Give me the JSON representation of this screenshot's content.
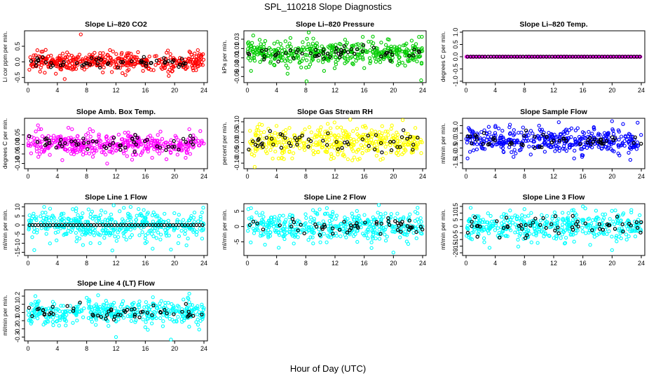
{
  "title": "SPL_110218  Slope Diagnostics",
  "xlabel": "Hour of Day (UTC)",
  "chart_data": [
    {
      "type": "scatter",
      "title": "Slope Li–820 CO2",
      "ylabel": "Li cor ppm per min.",
      "xlim": [
        0,
        24
      ],
      "ylim": [
        -0.62,
        0.95
      ],
      "xticks": [
        0,
        4,
        8,
        12,
        16,
        20,
        24
      ],
      "yticks": [
        -0.5,
        0.0,
        0.5
      ],
      "ytick_labels": [
        "-0.5",
        "0.0",
        "0.5"
      ],
      "color": "#ff0000",
      "secondary_color": "#000000",
      "spread": 0.14,
      "outliers": [
        [
          3.8,
          -0.38
        ],
        [
          5.0,
          -0.55
        ],
        [
          7.2,
          0.88
        ],
        [
          10.2,
          -0.34
        ],
        [
          13.3,
          -0.42
        ],
        [
          19.2,
          -0.45
        ],
        [
          2.0,
          0.33
        ],
        [
          15.0,
          0.31
        ]
      ]
    },
    {
      "type": "scatter",
      "title": "Slope Li–820 Pressure",
      "ylabel": "kPa per min.",
      "xlim": [
        0,
        24
      ],
      "ylim": [
        -0.06,
        0.045
      ],
      "xticks": [
        0,
        4,
        8,
        12,
        16,
        20,
        24
      ],
      "yticks": [
        -0.05,
        -0.03,
        -0.01,
        0.01,
        0.03
      ],
      "ytick_labels": [
        "-0.05",
        "-0.03",
        "-0.01",
        "0.01",
        "0.03"
      ],
      "color": "#00cc00",
      "secondary_color": "#000000",
      "spread": 0.012,
      "outliers": [
        [
          0.5,
          -0.038
        ],
        [
          0.8,
          0.038
        ],
        [
          5.5,
          -0.044
        ],
        [
          8.1,
          -0.062
        ],
        [
          10.5,
          -0.038
        ],
        [
          15.8,
          0.035
        ],
        [
          16.0,
          -0.032
        ],
        [
          23.8,
          -0.058
        ],
        [
          23.5,
          0.035
        ]
      ]
    },
    {
      "type": "scatter",
      "title": "Slope Li–820 Temp.",
      "ylabel": "degrees C per min.",
      "xlim": [
        0,
        24
      ],
      "ylim": [
        -1.0,
        1.0
      ],
      "xticks": [
        0,
        4,
        8,
        12,
        16,
        20,
        24
      ],
      "yticks": [
        -1.0,
        -0.5,
        0.0,
        0.5,
        1.0
      ],
      "ytick_labels": [
        "-1.0",
        "-0.5",
        "0.0",
        "0.5",
        "1.0"
      ],
      "color": "#ff00ff",
      "secondary_color": "#000000",
      "spread": 0.0,
      "outliers": []
    },
    {
      "type": "scatter",
      "title": "Slope Amb. Box Temp.",
      "ylabel": "degrees C per min.",
      "xlim": [
        0,
        24
      ],
      "ylim": [
        -0.12,
        0.13
      ],
      "xticks": [
        0,
        4,
        8,
        12,
        16,
        20,
        24
      ],
      "yticks": [
        -0.1,
        -0.05,
        0.0,
        0.05
      ],
      "ytick_labels": [
        "-0.10",
        "-0.05",
        "0.00",
        "0.05"
      ],
      "color": "#ff00ff",
      "secondary_color": "#000000",
      "spread": 0.03,
      "outliers": [
        [
          1.5,
          0.08
        ],
        [
          6.0,
          0.08
        ],
        [
          10.8,
          -0.1
        ],
        [
          14.2,
          -0.08
        ],
        [
          21.5,
          -0.07
        ],
        [
          23.5,
          0.07
        ],
        [
          22.0,
          0.08
        ]
      ]
    },
    {
      "type": "scatter",
      "title": "Slope Gas Stream RH",
      "ylabel": "percent per min.",
      "xlim": [
        0,
        24
      ],
      "ylim": [
        -0.12,
        0.11
      ],
      "xticks": [
        0,
        4,
        8,
        12,
        16,
        20,
        24
      ],
      "yticks": [
        -0.1,
        -0.05,
        0.0,
        0.05,
        0.1
      ],
      "ytick_labels": [
        "-0.10",
        "-0.05",
        "0.00",
        "0.05",
        "0.10"
      ],
      "color": "#ffff00",
      "secondary_color": "#000000",
      "spread": 0.035,
      "outliers": [
        [
          1.0,
          -0.118
        ],
        [
          2.0,
          0.085
        ],
        [
          11.0,
          0.09
        ],
        [
          16.1,
          0.08
        ],
        [
          23.0,
          0.07
        ],
        [
          5.0,
          -0.08
        ]
      ]
    },
    {
      "type": "scatter",
      "title": "Slope Sample Flow",
      "ylabel": "ml/min per min.",
      "xlim": [
        0,
        24
      ],
      "ylim": [
        -1.8,
        1.4
      ],
      "xticks": [
        0,
        4,
        8,
        12,
        16,
        20,
        24
      ],
      "yticks": [
        -1.5,
        -1.0,
        -0.5,
        0.0,
        0.5,
        1.0
      ],
      "ytick_labels": [
        "-1.5",
        "-1.0",
        "-0.5",
        "0.0",
        "0.5",
        "1.0"
      ],
      "color": "#0000ff",
      "secondary_color": "#000000",
      "spread": 0.38,
      "outliers": [
        [
          0.2,
          -1.2
        ],
        [
          6.5,
          -1.1
        ],
        [
          10.0,
          1.0
        ],
        [
          14.8,
          -1.2
        ],
        [
          15.9,
          -1.1
        ],
        [
          17.5,
          0.9
        ],
        [
          20.0,
          1.3
        ],
        [
          22.5,
          -1.3
        ],
        [
          23.5,
          1.2
        ],
        [
          4.0,
          0.9
        ],
        [
          21.0,
          -1.0
        ]
      ]
    },
    {
      "type": "scatter",
      "title": "Slope Line 1 Flow",
      "ylabel": "ml/min per min.",
      "xlim": [
        0,
        24
      ],
      "ylim": [
        -16,
        11
      ],
      "xticks": [
        0,
        4,
        8,
        12,
        16,
        20,
        24
      ],
      "yticks": [
        -15,
        -10,
        -5,
        0,
        5,
        10
      ],
      "ytick_labels": [
        "-15",
        "-10",
        "-5",
        "0",
        "5",
        "10"
      ],
      "color": "#00ffff",
      "secondary_color": "#000000",
      "spread": 4.0,
      "black_flat": true,
      "outliers": [
        [
          2.2,
          10.0
        ],
        [
          7.5,
          -11.0
        ],
        [
          11.5,
          -14.0
        ],
        [
          14.0,
          10.0
        ],
        [
          16.0,
          -10.0
        ],
        [
          17.0,
          -13.0
        ],
        [
          19.5,
          -13.5
        ],
        [
          20.5,
          -10.0
        ],
        [
          10.0,
          8.0
        ]
      ]
    },
    {
      "type": "scatter",
      "title": "Slope Line 2 Flow",
      "ylabel": "ml/min per min.",
      "xlim": [
        0,
        24
      ],
      "ylim": [
        -9,
        7
      ],
      "xticks": [
        0,
        4,
        8,
        12,
        16,
        20,
        24
      ],
      "yticks": [
        -5,
        0,
        5
      ],
      "ytick_labels": [
        "-5",
        "0",
        "5"
      ],
      "color": "#00ffff",
      "secondary_color": "#000000",
      "spread": 2.2,
      "outliers": [
        [
          0.5,
          6.0
        ],
        [
          17.0,
          -7.0
        ],
        [
          18.0,
          7.0
        ],
        [
          20.0,
          -8.5
        ],
        [
          23.0,
          4.8
        ],
        [
          9.0,
          -5.5
        ]
      ]
    },
    {
      "type": "scatter",
      "title": "Slope Line 3 Flow",
      "ylabel": "ml/min per min.",
      "xlim": [
        0,
        24
      ],
      "ylim": [
        -21,
        16
      ],
      "xticks": [
        0,
        4,
        8,
        12,
        16,
        20,
        24
      ],
      "yticks": [
        -20,
        -15,
        -10,
        -5,
        0,
        5,
        10,
        15
      ],
      "ytick_labels": [
        "-20",
        "-15",
        "-10",
        "-5",
        "0",
        "5",
        "10",
        "15"
      ],
      "color": "#00ffff",
      "secondary_color": "#000000",
      "spread": 5.0,
      "outliers": [
        [
          2.5,
          -12.0
        ],
        [
          8.0,
          13.0
        ],
        [
          13.5,
          -13.0
        ],
        [
          14.5,
          12.0
        ],
        [
          17.0,
          -14.0
        ],
        [
          20.0,
          -18.0
        ],
        [
          16.0,
          15.0
        ],
        [
          22.0,
          -10.0
        ]
      ]
    },
    {
      "type": "scatter",
      "title": "Slope Line 4 (LT) Flow",
      "ylabel": "ml/min per min.",
      "xlim": [
        0,
        24
      ],
      "ylim": [
        -0.33,
        0.26
      ],
      "xticks": [
        0,
        4,
        8,
        12,
        16,
        20,
        24
      ],
      "yticks": [
        -0.3,
        -0.2,
        -0.1,
        0.0,
        0.1,
        0.2
      ],
      "ytick_labels": [
        "-0.3",
        "-0.2",
        "-0.1",
        "0.0",
        "0.1",
        "0.2"
      ],
      "color": "#00ffff",
      "secondary_color": "#000000",
      "spread": 0.07,
      "outliers": [
        [
          1.0,
          0.2
        ],
        [
          12.0,
          -0.3
        ],
        [
          19.5,
          -0.33
        ],
        [
          22.0,
          0.23
        ],
        [
          8.0,
          0.18
        ],
        [
          16.0,
          -0.18
        ]
      ]
    }
  ]
}
